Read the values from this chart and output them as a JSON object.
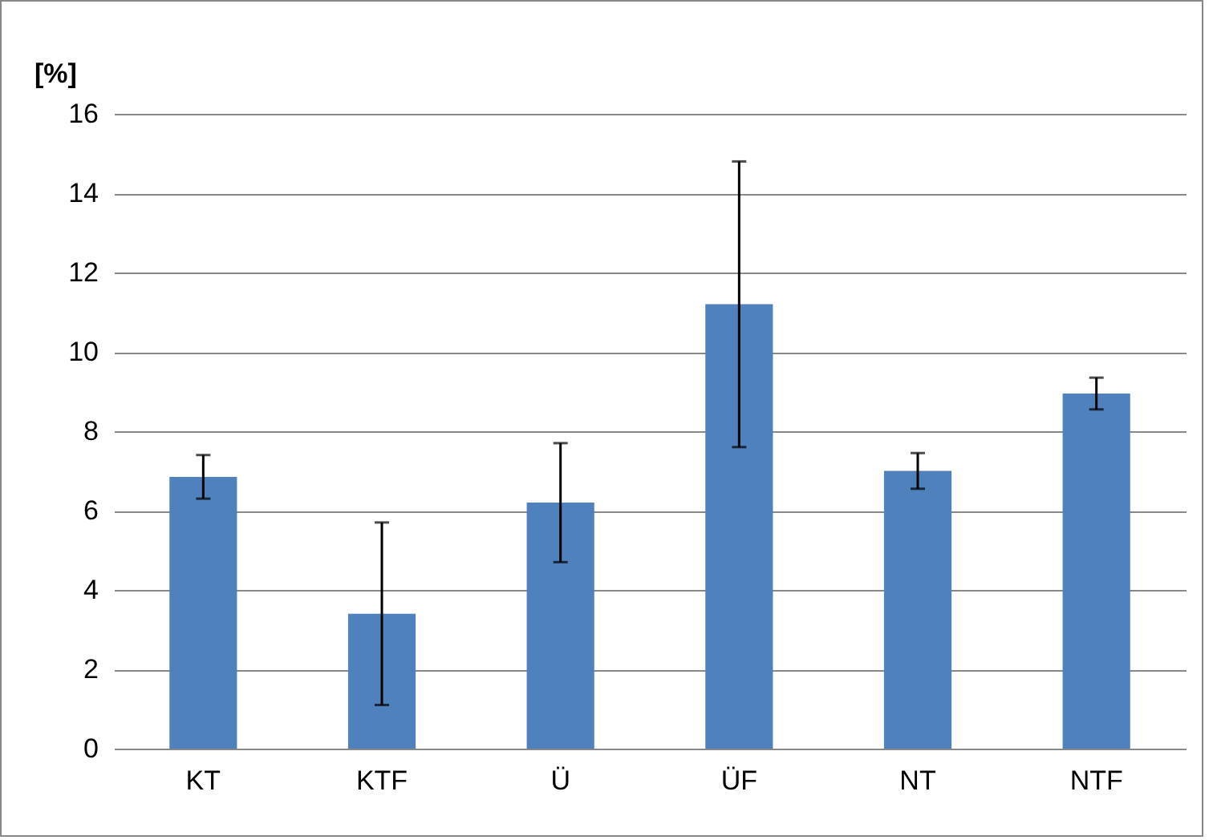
{
  "chart_data": {
    "type": "bar",
    "ylabel": "[%]",
    "categories": [
      "KT",
      "KTF",
      "Ü",
      "ÜF",
      "NT",
      "NTF"
    ],
    "values": [
      6.85,
      3.4,
      6.2,
      11.2,
      7.0,
      8.95
    ],
    "errors": [
      0.55,
      2.3,
      1.5,
      3.6,
      0.45,
      0.4
    ],
    "color": "#4f81bd",
    "ylim": [
      0,
      16
    ],
    "yticks": [
      0,
      2,
      4,
      6,
      8,
      10,
      12,
      14,
      16
    ],
    "grid": "y"
  }
}
